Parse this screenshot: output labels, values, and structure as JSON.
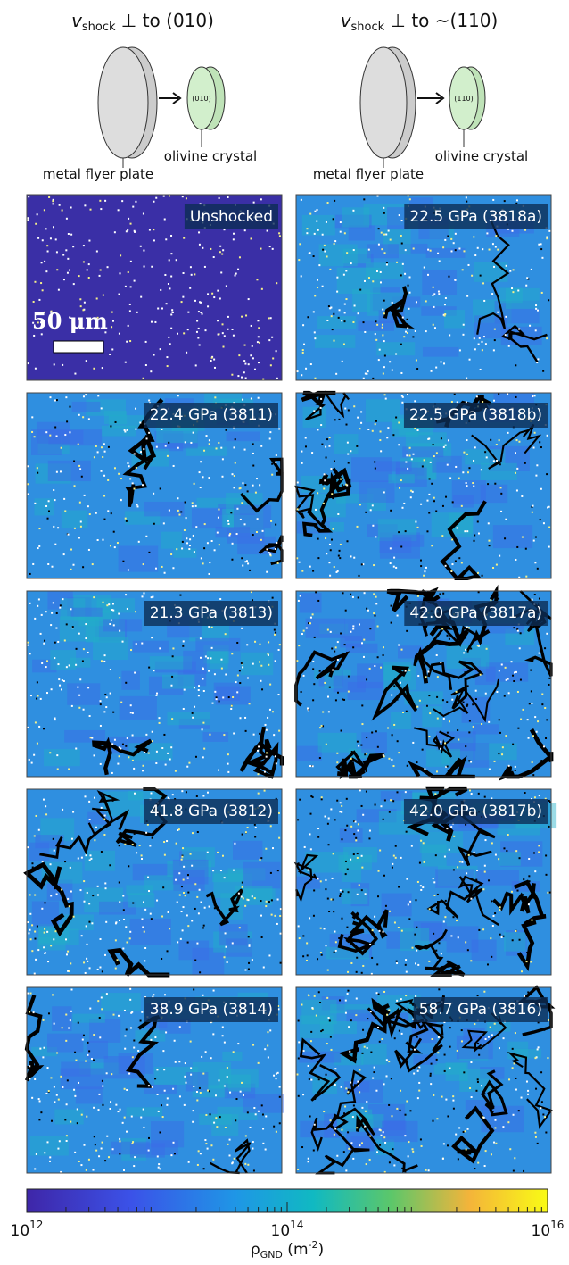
{
  "columns": [
    {
      "title": {
        "v": "v",
        "sub": "shock",
        "rest": " ⊥ to (010)"
      },
      "crystal_face": "(010)",
      "plate_label": "metal flyer plate",
      "crystal_label": "olivine crystal"
    },
    {
      "title": {
        "v": "v",
        "sub": "shock",
        "rest": " ⊥ to ~(110)"
      },
      "crystal_face": "(110)",
      "plate_label": "metal flyer plate",
      "crystal_label": "olivine crystal"
    }
  ],
  "panels": {
    "left": [
      "Unshocked",
      "22.4 GPa (3811)",
      "21.3 GPa (3813)",
      "41.8 GPa (3812)",
      "38.9 GPa (3814)"
    ],
    "right": [
      "22.5 GPa (3818a)",
      "22.5 GPa (3818b)",
      "42.0 GPa (3817a)",
      "42.0 GPa (3817b)",
      "58.7 GPa (3816)"
    ]
  },
  "scale_bar": "50 μm",
  "colorbar": {
    "lim": [
      1000000000000.0,
      1e+16
    ],
    "log": true,
    "ticks": [
      {
        "value": 1000000000000.0,
        "label": "10",
        "exponent": "12"
      },
      {
        "value": 100000000000000.0,
        "label": "10",
        "exponent": "14"
      },
      {
        "value": 1e+16,
        "label": "10",
        "exponent": "16"
      }
    ],
    "label": {
      "symbol": "ρ",
      "sub": "GND",
      "unit": " (m",
      "unit_exponent": "-2",
      "close": ")"
    }
  }
}
